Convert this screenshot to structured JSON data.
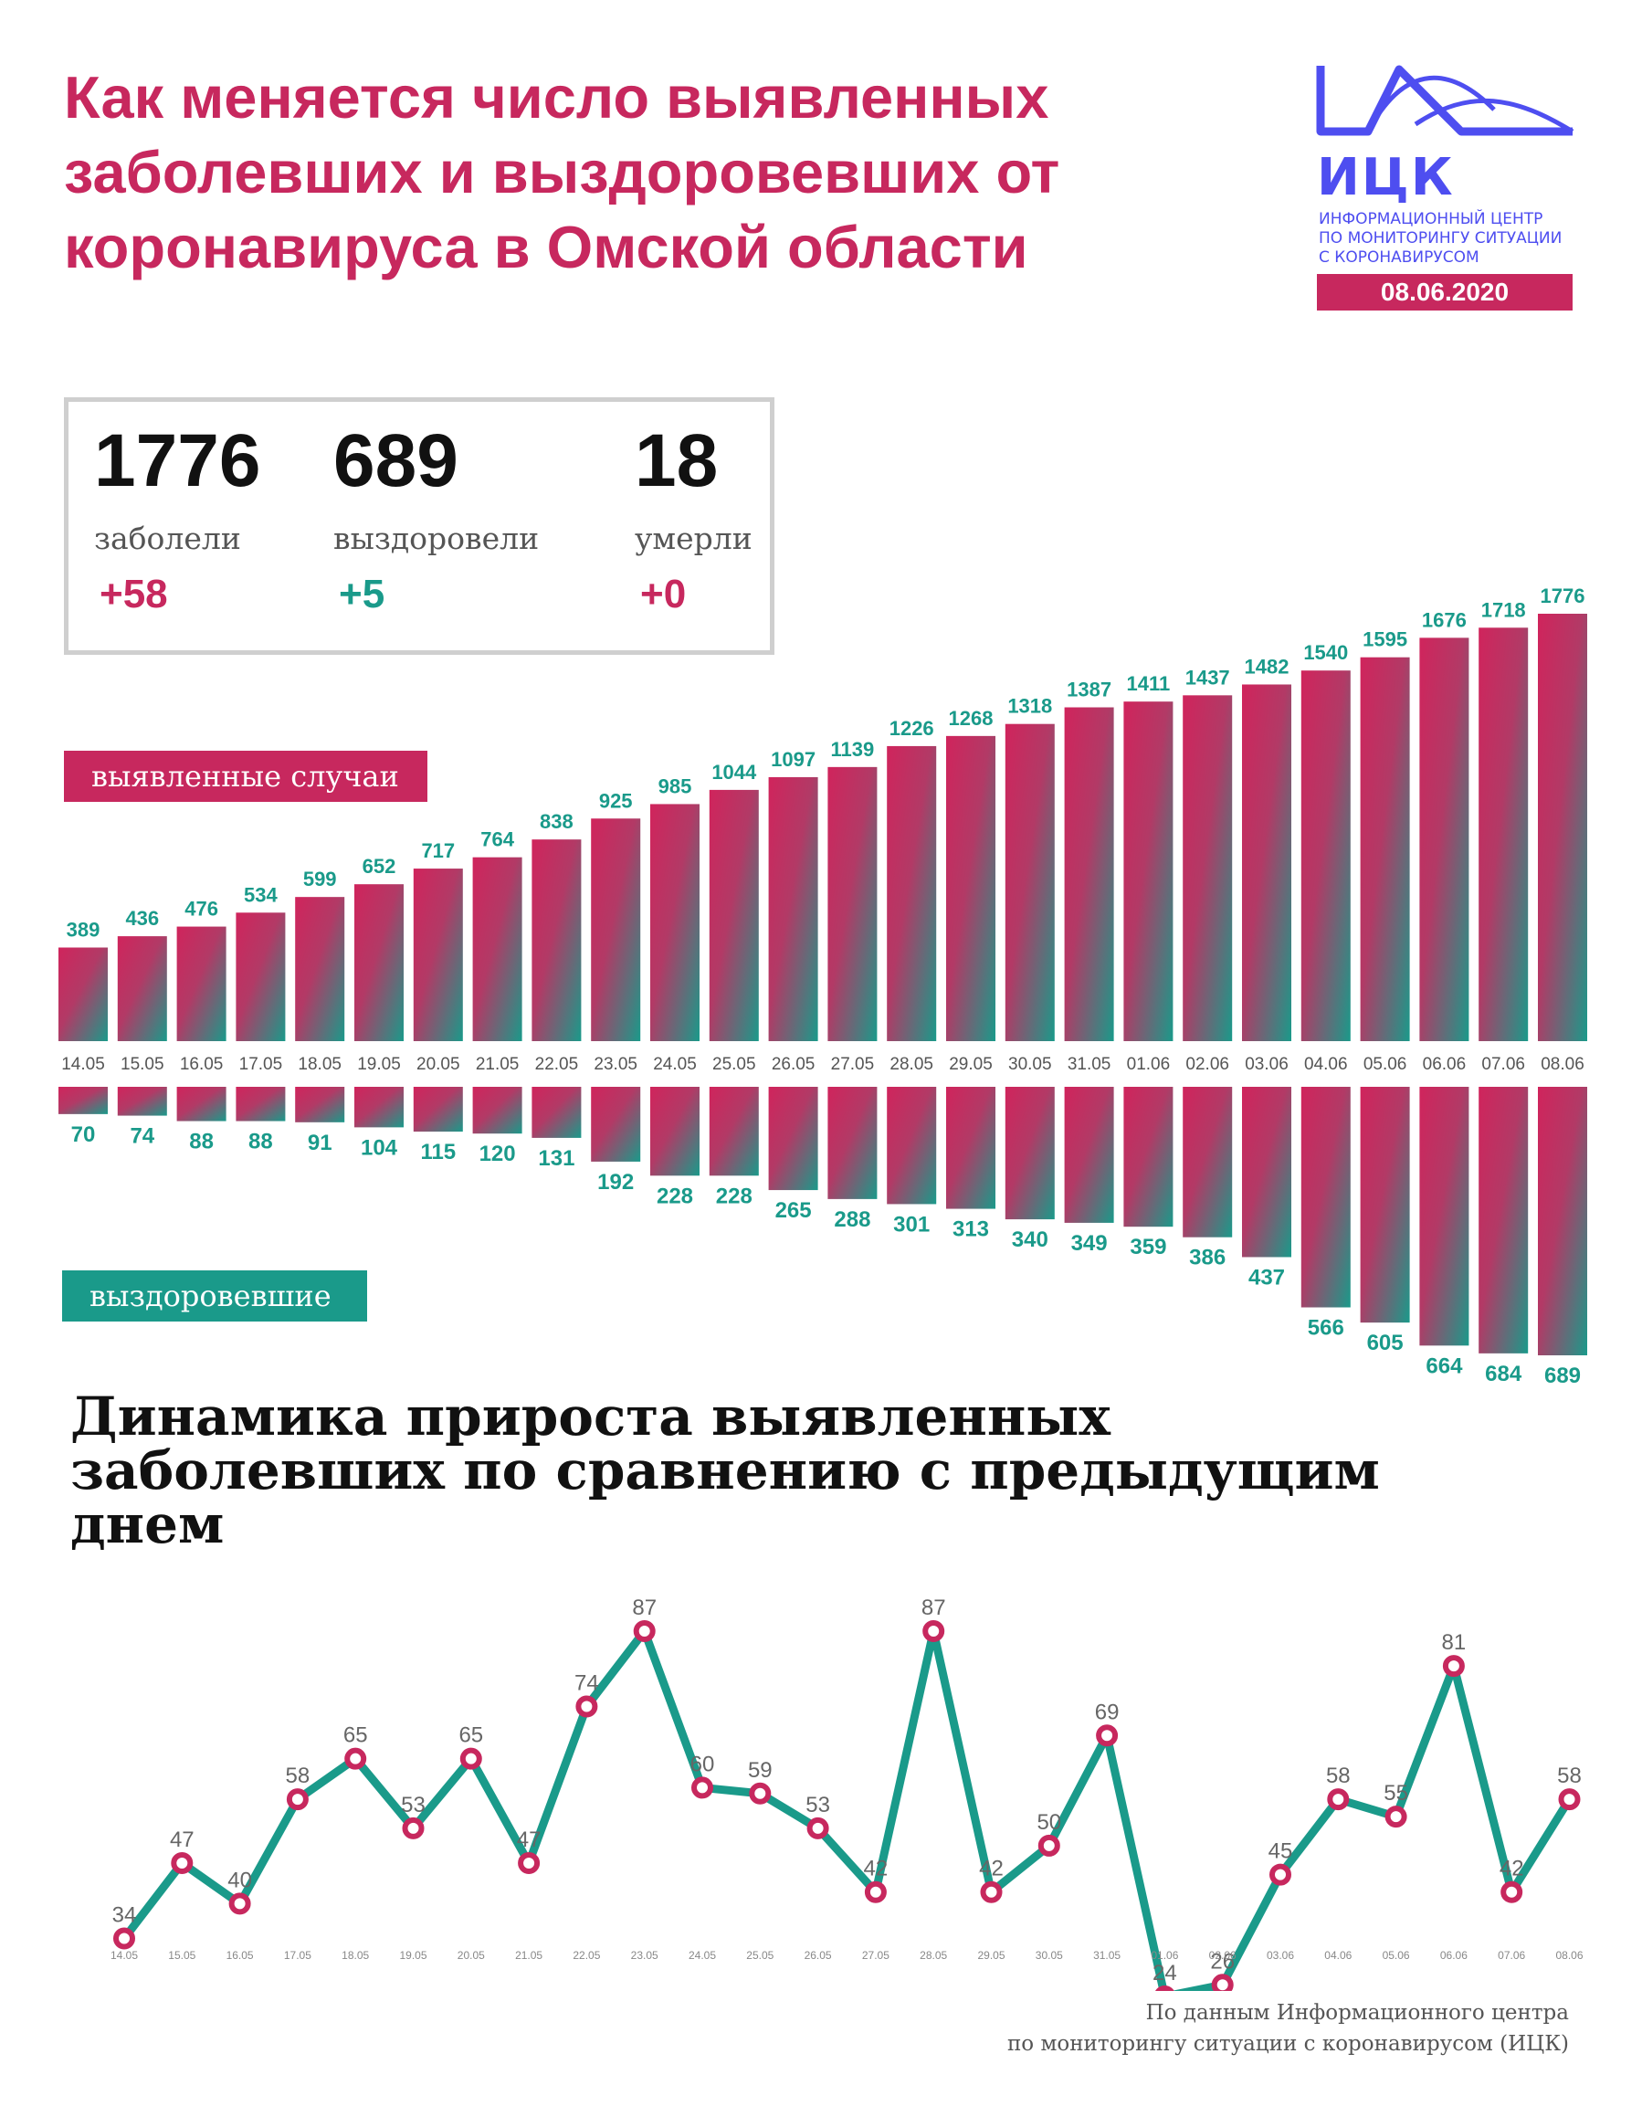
{
  "title": "Как меняется число выявленных заболевших и выздоровевших от коронавируса в Омской области",
  "logo": {
    "abbr": "ИЦК",
    "text_lines": [
      "ИНФОРМАЦИОННЫЙ ЦЕНТР",
      "ПО МОНИТОРИНГУ СИТУАЦИИ",
      "С КОРОНАВИРУСОМ"
    ],
    "date": "08.06.2020",
    "icon": "wave-mountain-icon"
  },
  "stats": [
    {
      "value": "1776",
      "label": "заболели",
      "delta": "+58"
    },
    {
      "value": "689",
      "label": "выздоровели",
      "delta": "+5"
    },
    {
      "value": "18",
      "label": "умерли",
      "delta": "+0"
    }
  ],
  "labels": {
    "detected": "выявленные случаи",
    "recovered": "выздоровевшие"
  },
  "line_title": "Динамика прироста выявленных заболевших по сравнению с предыдущим днем",
  "source_lines": [
    "По данным Информационного центра",
    "по мониторингу ситуации с коронавирусом (ИЦК)"
  ],
  "colors": {
    "crimson": "#c7285e",
    "teal": "#1a9a8a",
    "logo_blue": "#4e4ef0"
  },
  "chart_data": [
    {
      "type": "bar",
      "categories": [
        "14.05",
        "15.05",
        "16.05",
        "17.05",
        "18.05",
        "19.05",
        "20.05",
        "21.05",
        "22.05",
        "23.05",
        "24.05",
        "25.05",
        "26.05",
        "27.05",
        "28.05",
        "29.05",
        "30.05",
        "31.05",
        "01.06",
        "02.06",
        "03.06",
        "04.06",
        "05.06",
        "06.06",
        "07.06",
        "08.06"
      ],
      "series": [
        {
          "name": "выявленные случаи",
          "values": [
            389,
            436,
            476,
            534,
            599,
            652,
            717,
            764,
            838,
            925,
            985,
            1044,
            1097,
            1139,
            1226,
            1268,
            1318,
            1387,
            1411,
            1437,
            1482,
            1540,
            1595,
            1676,
            1718,
            1776
          ]
        },
        {
          "name": "выздоровевшие",
          "values": [
            70,
            74,
            88,
            88,
            91,
            104,
            115,
            120,
            131,
            192,
            228,
            228,
            265,
            288,
            301,
            313,
            340,
            349,
            359,
            386,
            437,
            566,
            605,
            664,
            684,
            689
          ]
        }
      ]
    },
    {
      "type": "line",
      "title": "Динамика прироста выявленных заболевших по сравнению с предыдущим днем",
      "categories": [
        "14.05",
        "15.05",
        "16.05",
        "17.05",
        "18.05",
        "19.05",
        "20.05",
        "21.05",
        "22.05",
        "23.05",
        "24.05",
        "25.05",
        "26.05",
        "27.05",
        "28.05",
        "29.05",
        "30.05",
        "31.05",
        "01.06",
        "02.06",
        "03.06",
        "04.06",
        "05.06",
        "06.06",
        "07.06",
        "08.06"
      ],
      "values": [
        34,
        47,
        40,
        58,
        65,
        53,
        65,
        47,
        74,
        87,
        60,
        59,
        53,
        42,
        87,
        42,
        50,
        69,
        24,
        26,
        45,
        58,
        55,
        81,
        42,
        58
      ],
      "grid": false
    }
  ]
}
